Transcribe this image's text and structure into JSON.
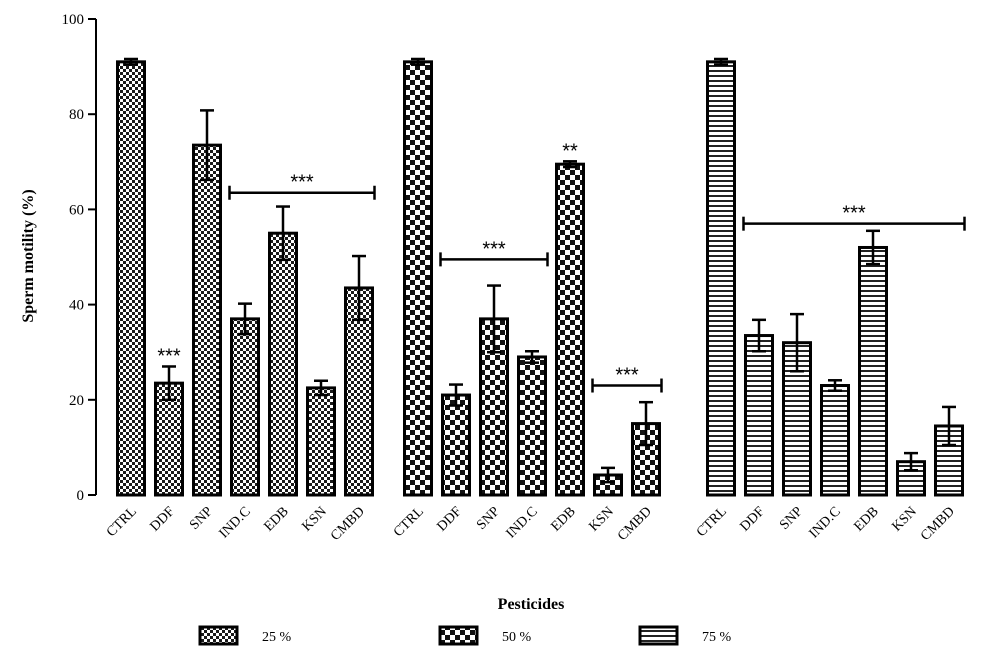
{
  "chart_data": {
    "type": "bar",
    "xlabel": "Pesticides",
    "ylabel": "Sperm motility (%)",
    "ylim": [
      0,
      100
    ],
    "yticks": [
      0,
      20,
      40,
      60,
      80,
      100
    ],
    "categories": [
      "CTRL",
      "DDF",
      "SNP",
      "IND.C",
      "EDB",
      "KSN",
      "CMBD"
    ],
    "series": [
      {
        "name": "25 %",
        "pattern": "dense-check",
        "values": [
          91,
          23.5,
          73.5,
          37,
          55,
          22.5,
          43.5
        ],
        "errors": [
          0.6,
          3.5,
          7.3,
          3.2,
          5.6,
          1.5,
          6.7
        ]
      },
      {
        "name": "50 %",
        "pattern": "large-check",
        "values": [
          91,
          21,
          37,
          29,
          69.5,
          4.2,
          15
        ],
        "errors": [
          0.6,
          2.2,
          7,
          1.2,
          0.6,
          1.5,
          4.5
        ]
      },
      {
        "name": "75 %",
        "pattern": "horizontal-stripes",
        "values": [
          91,
          33.5,
          32,
          23,
          52,
          7,
          14.5
        ],
        "errors": [
          0.6,
          3.3,
          6,
          1.1,
          3.5,
          1.8,
          4
        ]
      }
    ],
    "annotations": [
      {
        "text": "***",
        "type": "star",
        "group": 0,
        "bar": 1
      },
      {
        "text": "***",
        "type": "bracket",
        "group": 0,
        "from": 3,
        "to": 6,
        "y": 63.5
      },
      {
        "text": "***",
        "type": "bracket",
        "group": 1,
        "from": 1,
        "to": 3,
        "y": 49.5
      },
      {
        "text": "**",
        "type": "star",
        "group": 1,
        "bar": 4
      },
      {
        "text": "***",
        "type": "bracket",
        "group": 1,
        "from": 5,
        "to": 6,
        "y": 23
      },
      {
        "text": "***",
        "type": "bracket",
        "group": 2,
        "from": 1,
        "to": 6,
        "y": 57
      }
    ],
    "legend_position": "bottom",
    "grid": false
  }
}
